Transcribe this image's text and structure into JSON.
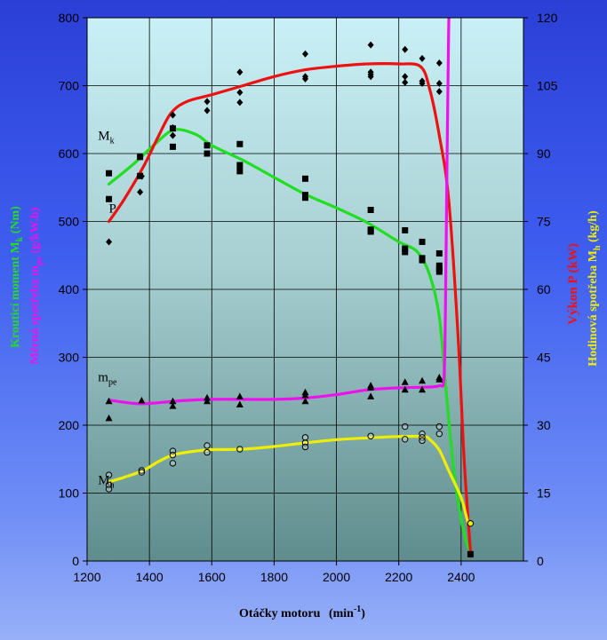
{
  "colors": {
    "mk": "#22dd22",
    "p": "#ee1111",
    "mpe": "#ee11ee",
    "mh": "#eeee00",
    "left_label_green": "#22dd22",
    "left_label_magenta": "#ee11ee",
    "right_label_red": "#ee1111",
    "right_label_yellow": "#eeee00"
  },
  "chart_data": {
    "type": "line",
    "xlabel": "Otáčky motoru",
    "xlabel_unit_base": "(min",
    "xlabel_unit_sup": "-1",
    "xlabel_unit_end": ")",
    "xlim": [
      1200,
      2600
    ],
    "xticks": [
      "1200",
      "1400",
      "1600",
      "1800",
      "2000",
      "2200",
      "2400"
    ],
    "ylim_left": [
      0,
      800
    ],
    "yticks_left": [
      "0",
      "100",
      "200",
      "300",
      "400",
      "500",
      "600",
      "700",
      "800"
    ],
    "ylim_right": [
      0,
      120
    ],
    "yticks_right": [
      "0",
      "15",
      "30",
      "45",
      "60",
      "75",
      "90",
      "105",
      "120"
    ],
    "ylabel_left_1": "Krouticí moment  M",
    "ylabel_left_1_sub": "k",
    "ylabel_left_1_end": "  (Nm)",
    "ylabel_left_2": "Měrná spotřeba  m",
    "ylabel_left_2_sub": "pe",
    "ylabel_left_2_end": "  (g/kW.h)",
    "ylabel_right_1": "Výkon  P  (kW)",
    "ylabel_right_2": "Hodinová spotřeba  M",
    "ylabel_right_2_sub": "h",
    "ylabel_right_2_end": "  (kg/h)",
    "grid": true,
    "series": [
      {
        "name": "M",
        "name_sub": "k",
        "color_key": "mk",
        "axis": "left",
        "marker": "square",
        "label_at": [
          1235,
          620
        ],
        "curve": [
          [
            1270,
            555
          ],
          [
            1350,
            585
          ],
          [
            1420,
            615
          ],
          [
            1480,
            635
          ],
          [
            1550,
            628
          ],
          [
            1600,
            612
          ],
          [
            1700,
            590
          ],
          [
            1800,
            565
          ],
          [
            1900,
            540
          ],
          [
            2000,
            520
          ],
          [
            2100,
            498
          ],
          [
            2200,
            470
          ],
          [
            2260,
            455
          ],
          [
            2300,
            420
          ],
          [
            2330,
            360
          ],
          [
            2350,
            260
          ],
          [
            2380,
            120
          ],
          [
            2410,
            40
          ],
          [
            2430,
            12
          ]
        ],
        "points": [
          [
            1270,
            571
          ],
          [
            1270,
            533
          ],
          [
            1370,
            595
          ],
          [
            1370,
            567
          ],
          [
            1475,
            637
          ],
          [
            1475,
            610
          ],
          [
            1585,
            612
          ],
          [
            1585,
            600
          ],
          [
            1690,
            614
          ],
          [
            1690,
            583
          ],
          [
            1690,
            574
          ],
          [
            1900,
            563
          ],
          [
            1900,
            539
          ],
          [
            1900,
            535
          ],
          [
            2110,
            517
          ],
          [
            2110,
            488
          ],
          [
            2110,
            485
          ],
          [
            2220,
            487
          ],
          [
            2220,
            460
          ],
          [
            2220,
            455
          ],
          [
            2275,
            470
          ],
          [
            2275,
            446
          ],
          [
            2275,
            443
          ],
          [
            2330,
            453
          ],
          [
            2330,
            435
          ],
          [
            2330,
            430
          ],
          [
            2330,
            426
          ],
          [
            2430,
            10
          ]
        ]
      },
      {
        "name": "P",
        "name_sub": "",
        "color_key": "p",
        "axis": "right",
        "marker": "diamond",
        "label_at": [
          1270,
          77
        ],
        "curve": [
          [
            1270,
            75
          ],
          [
            1320,
            80
          ],
          [
            1380,
            87
          ],
          [
            1430,
            94
          ],
          [
            1470,
            99
          ],
          [
            1520,
            101.5
          ],
          [
            1600,
            103
          ],
          [
            1700,
            105
          ],
          [
            1800,
            107
          ],
          [
            1900,
            108.5
          ],
          [
            2000,
            109.3
          ],
          [
            2100,
            109.8
          ],
          [
            2200,
            109.8
          ],
          [
            2270,
            109.2
          ],
          [
            2300,
            104
          ],
          [
            2330,
            94
          ],
          [
            2360,
            80
          ],
          [
            2390,
            50
          ],
          [
            2410,
            22
          ],
          [
            2430,
            2
          ]
        ],
        "points": [
          [
            1270,
            70.5
          ],
          [
            1370,
            81.5
          ],
          [
            1375,
            85
          ],
          [
            1475,
            98.5
          ],
          [
            1475,
            94
          ],
          [
            1475,
            95.7
          ],
          [
            1585,
            101.5
          ],
          [
            1585,
            99.5
          ],
          [
            1690,
            108
          ],
          [
            1690,
            103.5
          ],
          [
            1690,
            101.3
          ],
          [
            1900,
            112
          ],
          [
            1900,
            107
          ],
          [
            1900,
            106.5
          ],
          [
            2110,
            114
          ],
          [
            2110,
            108
          ],
          [
            2110,
            107.5
          ],
          [
            2110,
            107
          ],
          [
            2220,
            113
          ],
          [
            2220,
            107
          ],
          [
            2220,
            105.7
          ],
          [
            2275,
            111
          ],
          [
            2275,
            106
          ],
          [
            2275,
            105.5
          ],
          [
            2330,
            110
          ],
          [
            2330,
            105.5
          ],
          [
            2330,
            103.7
          ],
          [
            2430,
            1.5
          ]
        ]
      },
      {
        "name": "m",
        "name_sub": "pe",
        "color_key": "mpe",
        "axis": "left",
        "marker": "triangle",
        "label_at": [
          1235,
          265
        ],
        "curve": [
          [
            1270,
            237
          ],
          [
            1350,
            232
          ],
          [
            1400,
            232
          ],
          [
            1500,
            236
          ],
          [
            1600,
            238
          ],
          [
            1700,
            238
          ],
          [
            1800,
            238
          ],
          [
            1900,
            240
          ],
          [
            2000,
            245
          ],
          [
            2100,
            252
          ],
          [
            2200,
            255
          ],
          [
            2280,
            256
          ],
          [
            2330,
            258
          ],
          [
            2345,
            270
          ],
          [
            2350,
            380
          ],
          [
            2355,
            600
          ],
          [
            2360,
            780
          ],
          [
            2363,
            840
          ]
        ],
        "points": [
          [
            1270,
            235
          ],
          [
            1270,
            210
          ],
          [
            1375,
            236
          ],
          [
            1475,
            235
          ],
          [
            1475,
            228
          ],
          [
            1585,
            240
          ],
          [
            1585,
            235
          ],
          [
            1690,
            242
          ],
          [
            1690,
            230
          ],
          [
            1900,
            248
          ],
          [
            1900,
            244
          ],
          [
            1900,
            235
          ],
          [
            2110,
            258
          ],
          [
            2110,
            255
          ],
          [
            2110,
            242
          ],
          [
            2220,
            263
          ],
          [
            2220,
            252
          ],
          [
            2275,
            265
          ],
          [
            2275,
            252
          ],
          [
            2330,
            270
          ],
          [
            2330,
            267
          ]
        ]
      },
      {
        "name": "M",
        "name_sub": "h",
        "color_key": "mh",
        "axis": "right",
        "marker": "circle",
        "label_at": [
          1235,
          17
        ],
        "curve": [
          [
            1270,
            17.5
          ],
          [
            1320,
            18.5
          ],
          [
            1380,
            20
          ],
          [
            1430,
            22
          ],
          [
            1480,
            23.5
          ],
          [
            1550,
            24.3
          ],
          [
            1600,
            24.6
          ],
          [
            1700,
            24.7
          ],
          [
            1800,
            25.3
          ],
          [
            1900,
            26.1
          ],
          [
            2000,
            26.8
          ],
          [
            2100,
            27.2
          ],
          [
            2200,
            27.5
          ],
          [
            2280,
            27.5
          ],
          [
            2300,
            26.8
          ],
          [
            2330,
            24.5
          ],
          [
            2360,
            20
          ],
          [
            2400,
            14
          ],
          [
            2420,
            9
          ],
          [
            2430,
            8
          ]
        ],
        "points": [
          [
            1270,
            19
          ],
          [
            1270,
            16.8
          ],
          [
            1270,
            15.9
          ],
          [
            1375,
            20
          ],
          [
            1375,
            19.6
          ],
          [
            1475,
            24.3
          ],
          [
            1475,
            23.4
          ],
          [
            1475,
            21.6
          ],
          [
            1585,
            25.5
          ],
          [
            1585,
            24
          ],
          [
            1690,
            24.7
          ],
          [
            1900,
            27.3
          ],
          [
            1900,
            26.1
          ],
          [
            1900,
            25.2
          ],
          [
            2110,
            27.6
          ],
          [
            2220,
            29.7
          ],
          [
            2220,
            26.9
          ],
          [
            2275,
            28.1
          ],
          [
            2275,
            27.3
          ],
          [
            2275,
            26.6
          ],
          [
            2330,
            29.7
          ],
          [
            2330,
            28.1
          ],
          [
            2430,
            8.3
          ]
        ]
      }
    ]
  }
}
